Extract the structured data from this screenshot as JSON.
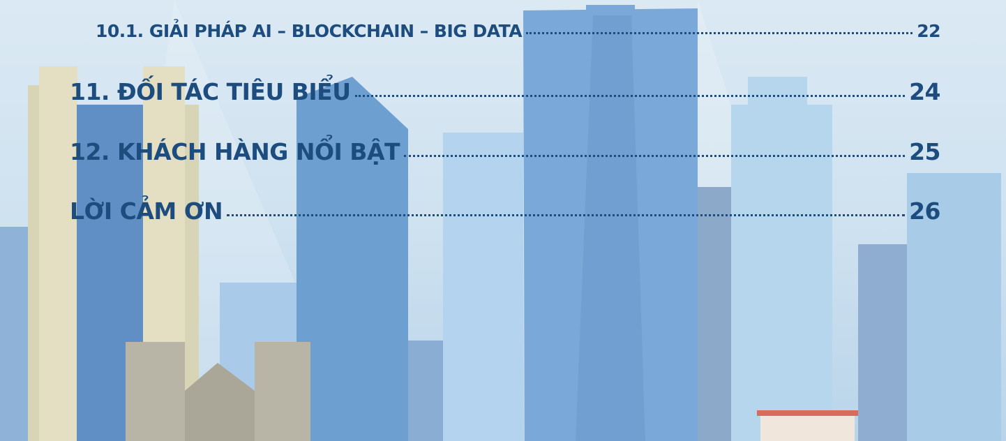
{
  "toc": [
    {
      "title": "10.1. GIẢI PHÁP AI – BLOCKCHAIN – BIG DATA",
      "page": 22
    },
    {
      "title": "11. ĐỐI TÁC TIÊU BIỂU",
      "page": 24
    },
    {
      "title": "12. KHÁCH HÀNG NỔI BẬT",
      "page": 25
    },
    {
      "title": "LỜI CẢM ƠN",
      "page": 26
    }
  ]
}
